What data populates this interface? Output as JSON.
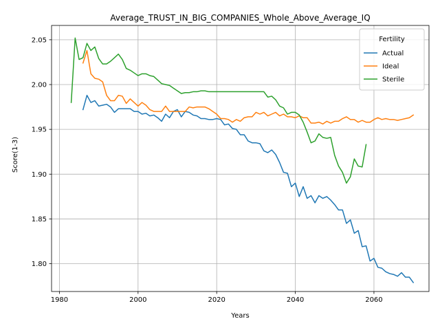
{
  "chart_data": {
    "type": "line",
    "title": "Average_TRUST_IN_BIG_COMPANIES_Whole_Above_Average_IQ",
    "xlabel": "Years",
    "ylabel": "Score(1-3)",
    "xlim": [
      1978,
      2074
    ],
    "ylim": [
      1.769,
      2.066
    ],
    "xticks": [
      "1980",
      "2000",
      "2020",
      "2040",
      "2060"
    ],
    "yticks": [
      "1.80",
      "1.85",
      "1.90",
      "1.95",
      "2.00",
      "2.05"
    ],
    "grid": true,
    "legend": {
      "title": "Fertility",
      "position": "top-right"
    },
    "series": [
      {
        "name": "Actual",
        "color": "#1f77b4",
        "x": [
          1986,
          1987,
          1988,
          1989,
          1990,
          1991,
          1992,
          1993,
          1994,
          1995,
          1996,
          1997,
          1998,
          1999,
          2000,
          2001,
          2002,
          2003,
          2004,
          2005,
          2006,
          2007,
          2008,
          2009,
          2010,
          2011,
          2012,
          2013,
          2014,
          2015,
          2016,
          2017,
          2018,
          2019,
          2020,
          2021,
          2022,
          2023,
          2024,
          2025,
          2026,
          2027,
          2028,
          2029,
          2030,
          2031,
          2032,
          2033,
          2034,
          2035,
          2036,
          2037,
          2038,
          2039,
          2040,
          2041,
          2042,
          2043,
          2044,
          2045,
          2046,
          2047,
          2048,
          2049,
          2050,
          2051,
          2052,
          2053,
          2054,
          2055,
          2056,
          2057,
          2058,
          2059,
          2060,
          2061,
          2062,
          2063,
          2064,
          2065,
          2066,
          2067,
          2068,
          2069,
          2070
        ],
        "values": [
          1.972,
          1.988,
          1.98,
          1.982,
          1.976,
          1.977,
          1.978,
          1.975,
          1.969,
          1.973,
          1.973,
          1.973,
          1.973,
          1.97,
          1.97,
          1.967,
          1.968,
          1.965,
          1.966,
          1.963,
          1.959,
          1.967,
          1.963,
          1.97,
          1.972,
          1.964,
          1.97,
          1.969,
          1.966,
          1.965,
          1.962,
          1.962,
          1.961,
          1.961,
          1.962,
          1.961,
          1.955,
          1.956,
          1.951,
          1.95,
          1.944,
          1.944,
          1.937,
          1.935,
          1.935,
          1.934,
          1.926,
          1.924,
          1.927,
          1.922,
          1.913,
          1.902,
          1.901,
          1.886,
          1.89,
          1.875,
          1.886,
          1.873,
          1.876,
          1.868,
          1.876,
          1.873,
          1.875,
          1.871,
          1.866,
          1.86,
          1.86,
          1.845,
          1.849,
          1.834,
          1.837,
          1.819,
          1.82,
          1.803,
          1.806,
          1.796,
          1.795,
          1.791,
          1.789,
          1.788,
          1.786,
          1.79,
          1.785,
          1.785,
          1.779
        ]
      },
      {
        "name": "Ideal",
        "color": "#ff7f0e",
        "x": [
          1986,
          1987,
          1988,
          1989,
          1990,
          1991,
          1992,
          1993,
          1994,
          1995,
          1996,
          1997,
          1998,
          1999,
          2000,
          2001,
          2002,
          2003,
          2004,
          2005,
          2006,
          2007,
          2008,
          2009,
          2010,
          2011,
          2012,
          2013,
          2014,
          2015,
          2016,
          2017,
          2018,
          2019,
          2020,
          2021,
          2022,
          2023,
          2024,
          2025,
          2026,
          2027,
          2028,
          2029,
          2030,
          2031,
          2032,
          2033,
          2034,
          2035,
          2036,
          2037,
          2038,
          2039,
          2040,
          2041,
          2042,
          2043,
          2044,
          2045,
          2046,
          2047,
          2048,
          2049,
          2050,
          2051,
          2052,
          2053,
          2054,
          2055,
          2056,
          2057,
          2058,
          2059,
          2060,
          2061,
          2062,
          2063,
          2064,
          2065,
          2066,
          2067,
          2068,
          2069,
          2070
        ],
        "values": [
          2.024,
          2.038,
          2.012,
          2.007,
          2.006,
          2.003,
          1.988,
          1.982,
          1.982,
          1.988,
          1.987,
          1.979,
          1.984,
          1.98,
          1.976,
          1.98,
          1.977,
          1.972,
          1.97,
          1.97,
          1.97,
          1.976,
          1.97,
          1.97,
          1.97,
          1.97,
          1.97,
          1.975,
          1.974,
          1.975,
          1.975,
          1.975,
          1.973,
          1.97,
          1.967,
          1.962,
          1.962,
          1.961,
          1.958,
          1.961,
          1.959,
          1.963,
          1.964,
          1.964,
          1.969,
          1.967,
          1.969,
          1.965,
          1.967,
          1.969,
          1.965,
          1.967,
          1.964,
          1.964,
          1.963,
          1.965,
          1.963,
          1.963,
          1.957,
          1.957,
          1.958,
          1.956,
          1.959,
          1.957,
          1.959,
          1.959,
          1.962,
          1.964,
          1.961,
          1.961,
          1.958,
          1.96,
          1.958,
          1.958,
          1.961,
          1.963,
          1.961,
          1.962,
          1.961,
          1.961,
          1.96,
          1.961,
          1.962,
          1.963,
          1.966
        ]
      },
      {
        "name": "Sterile",
        "color": "#2ca02c",
        "x": [
          1983,
          1984,
          1985,
          1986,
          1987,
          1988,
          1989,
          1990,
          1991,
          1992,
          1993,
          1994,
          1995,
          1996,
          1997,
          1998,
          1999,
          2000,
          2001,
          2002,
          2003,
          2004,
          2005,
          2006,
          2007,
          2008,
          2009,
          2010,
          2011,
          2012,
          2013,
          2014,
          2015,
          2016,
          2017,
          2018,
          2019,
          2020,
          2021,
          2022,
          2023,
          2024,
          2025,
          2026,
          2027,
          2028,
          2029,
          2030,
          2031,
          2032,
          2033,
          2034,
          2035,
          2036,
          2037,
          2038,
          2039,
          2040,
          2041,
          2042,
          2043,
          2044,
          2045,
          2046,
          2047,
          2048,
          2049,
          2050,
          2051,
          2052,
          2053,
          2054,
          2055,
          2056,
          2057,
          2058
        ],
        "values": [
          1.98,
          2.052,
          2.028,
          2.03,
          2.046,
          2.038,
          2.042,
          2.029,
          2.023,
          2.023,
          2.026,
          2.03,
          2.034,
          2.028,
          2.018,
          2.016,
          2.013,
          2.01,
          2.012,
          2.012,
          2.01,
          2.009,
          2.005,
          2.001,
          2.0,
          1.999,
          1.996,
          1.993,
          1.99,
          1.991,
          1.991,
          1.992,
          1.992,
          1.993,
          1.993,
          1.992,
          1.992,
          1.992,
          1.992,
          1.992,
          1.992,
          1.992,
          1.992,
          1.992,
          1.992,
          1.992,
          1.992,
          1.992,
          1.992,
          1.992,
          1.986,
          1.987,
          1.983,
          1.976,
          1.974,
          1.967,
          1.969,
          1.969,
          1.966,
          1.958,
          1.947,
          1.935,
          1.937,
          1.945,
          1.941,
          1.94,
          1.941,
          1.921,
          1.909,
          1.902,
          1.89,
          1.897,
          1.917,
          1.909,
          1.908,
          1.933
        ]
      }
    ]
  }
}
